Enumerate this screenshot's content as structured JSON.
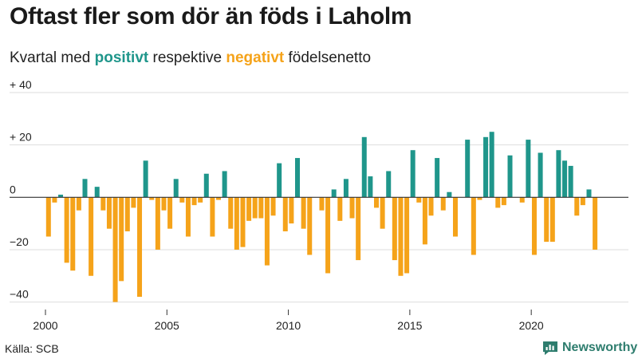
{
  "header": {
    "title": "Oftast fler som dör än föds i Laholm",
    "subtitle_prefix": "Kvartal med ",
    "subtitle_positive": "positivt",
    "subtitle_middle": " respektive ",
    "subtitle_negative": "negativt",
    "subtitle_suffix": " födelsenetto"
  },
  "footer": {
    "source": "Källa: SCB",
    "brand": "Newsworthy"
  },
  "colors": {
    "positive": "#1f968b",
    "negative": "#f5a31a",
    "gridline": "#dddddd",
    "zero_line": "#333333",
    "brand": "#2e7d6e"
  },
  "chart_data": {
    "type": "bar",
    "title": "Oftast fler som dör än föds i Laholm",
    "subtitle": "Kvartal med positivt respektive negativt födelsenetto",
    "ylim": [
      -45,
      40
    ],
    "y_ticks": [
      40,
      20,
      0,
      -20,
      -40
    ],
    "y_tick_labels": [
      "+ 40",
      "+ 20",
      "0",
      "−20",
      "−40"
    ],
    "x_ticks": [
      "2000",
      "2005",
      "2010",
      "2015",
      "2020"
    ],
    "grid": true,
    "start": "2000 Q1",
    "values": [
      -15,
      -2,
      1,
      -25,
      -28,
      -5,
      7,
      -30,
      4,
      -5,
      -12,
      -40,
      -32,
      -13,
      -4,
      -38,
      14,
      -1,
      -20,
      -5,
      -12,
      7,
      -2,
      -15,
      -3,
      -2,
      9,
      -15,
      -1,
      10,
      -12,
      -20,
      -19,
      -9,
      -8,
      -8,
      -26,
      -7,
      13,
      -13,
      -10,
      15,
      -12,
      -22,
      0,
      -5,
      -29,
      3,
      -9,
      7,
      -8,
      -24,
      23,
      8,
      -4,
      -12,
      10,
      -24,
      -30,
      -29,
      18,
      -2,
      -18,
      -7,
      15,
      -5,
      2,
      -15,
      0,
      22,
      -22,
      -1,
      23,
      25,
      -4,
      -3,
      16,
      0,
      -2,
      22,
      -22,
      17,
      -17,
      -17,
      18,
      14,
      12,
      -7,
      -3,
      3,
      -20
    ]
  }
}
